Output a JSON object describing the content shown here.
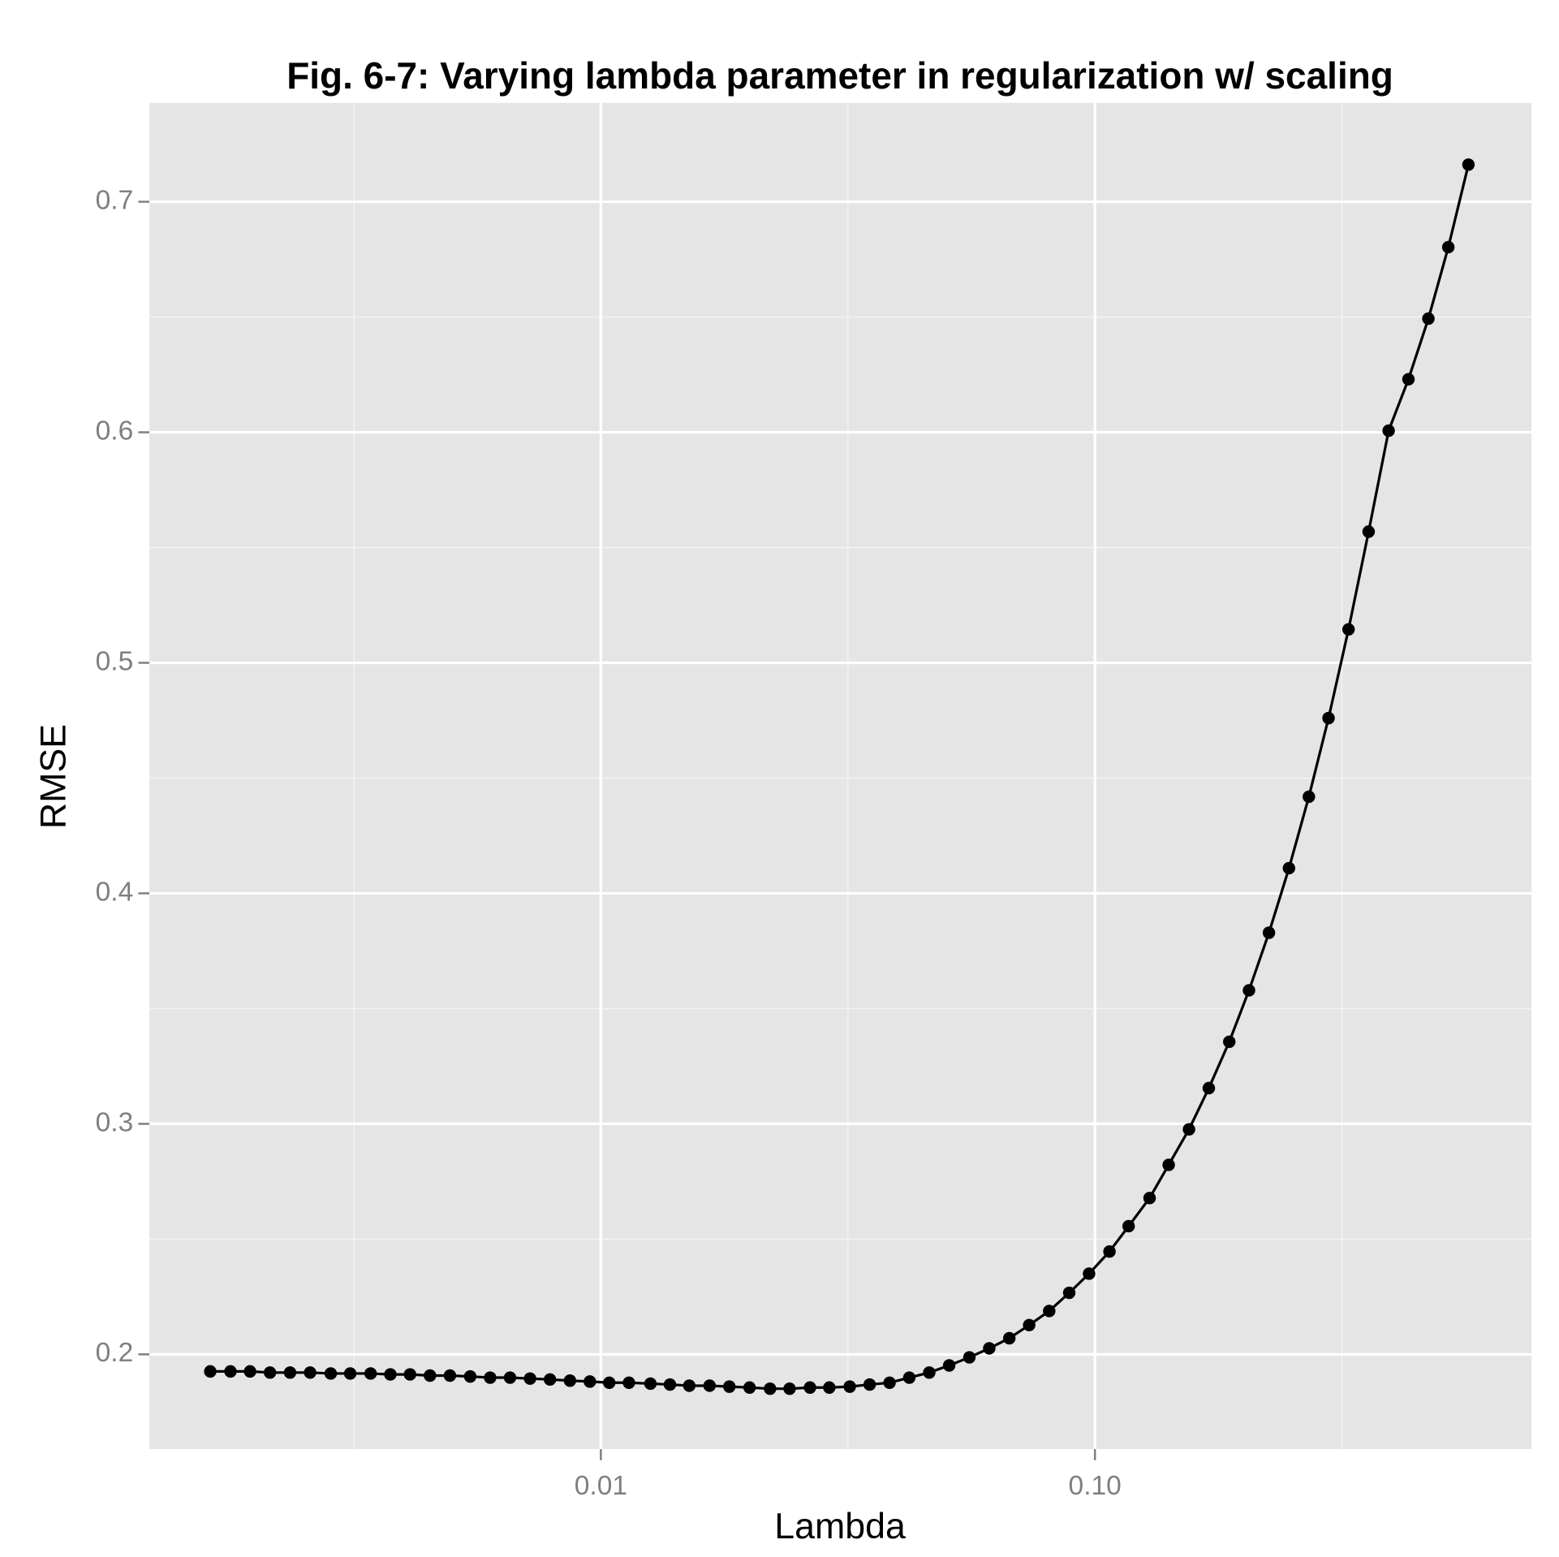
{
  "chart_data": {
    "type": "line",
    "title": "Fig. 6-7: Varying lambda parameter in regularization w/ scaling",
    "x_label": "Lambda",
    "y_label": "RMSE",
    "x_scale": "log",
    "grid": true,
    "marker": "circle",
    "x": [
      0.00162,
      0.00178,
      0.00195,
      0.00214,
      0.00235,
      0.00258,
      0.00284,
      0.00311,
      0.00342,
      0.00375,
      0.00411,
      0.00451,
      0.00495,
      0.00544,
      0.00597,
      0.00655,
      0.00719,
      0.00789,
      0.00866,
      0.0095,
      0.0104,
      0.0114,
      0.0126,
      0.0138,
      0.0151,
      0.0166,
      0.0182,
      0.02,
      0.022,
      0.0241,
      0.0265,
      0.029,
      0.0319,
      0.035,
      0.0384,
      0.0421,
      0.0462,
      0.0507,
      0.0557,
      0.0611,
      0.0671,
      0.0736,
      0.0808,
      0.0887,
      0.0973,
      0.107,
      0.117,
      0.129,
      0.141,
      0.155,
      0.17,
      0.187,
      0.205,
      0.225,
      0.247,
      0.271,
      0.297,
      0.326,
      0.358,
      0.393,
      0.431,
      0.473,
      0.519,
      0.57
    ],
    "series": [
      {
        "name": "RMSE",
        "color": "#000000",
        "values": [
          0.1926,
          0.1926,
          0.1926,
          0.1921,
          0.1921,
          0.1921,
          0.1917,
          0.1917,
          0.1917,
          0.1913,
          0.1913,
          0.1908,
          0.1908,
          0.1904,
          0.1899,
          0.1899,
          0.1895,
          0.1891,
          0.1886,
          0.1882,
          0.1877,
          0.1877,
          0.1873,
          0.1869,
          0.1864,
          0.1864,
          0.186,
          0.1856,
          0.1851,
          0.1851,
          0.1856,
          0.1856,
          0.186,
          0.1869,
          0.1877,
          0.1899,
          0.1921,
          0.1952,
          0.1987,
          0.2026,
          0.207,
          0.2127,
          0.2188,
          0.2267,
          0.235,
          0.2446,
          0.2556,
          0.2678,
          0.2822,
          0.2976,
          0.3155,
          0.3356,
          0.3579,
          0.3829,
          0.4109,
          0.4419,
          0.476,
          0.5145,
          0.5569,
          0.6007,
          0.623,
          0.6493,
          0.6803,
          0.7161
        ]
      }
    ],
    "xlim": [
      0.00122,
      0.765
    ],
    "ylim": [
      0.1589,
      0.7429
    ],
    "xticks": [
      {
        "value": 0.01,
        "label": "0.01"
      },
      {
        "value": 0.1,
        "label": "0.10"
      }
    ],
    "yticks": [
      0.2,
      0.3,
      0.4,
      0.5,
      0.6,
      0.7
    ]
  }
}
